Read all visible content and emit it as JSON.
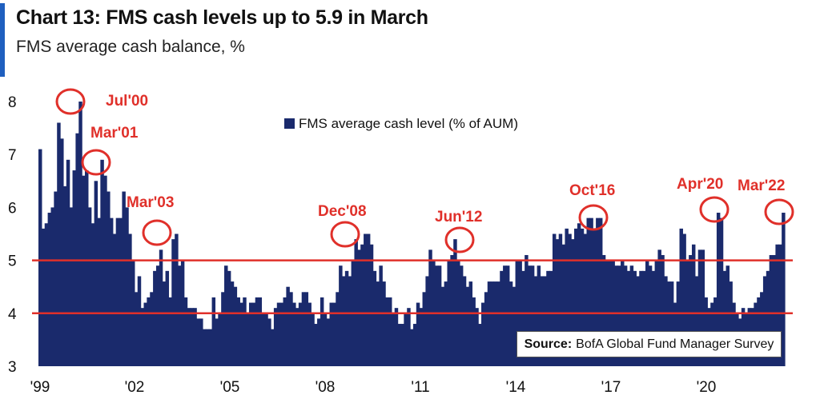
{
  "header": {
    "title": "Chart 13: FMS cash levels up to 5.9 in March",
    "subtitle": "FMS average cash balance, %"
  },
  "source": {
    "label": "Source:",
    "text": "BofA Global Fund Manager Survey"
  },
  "colors": {
    "bar": "#1a2a6c",
    "annotation": "#e0302a",
    "accent": "#1f5fbf"
  },
  "chart_data": {
    "type": "bar",
    "title": "Chart 13: FMS cash levels up to 5.9 in March",
    "subtitle": "FMS average cash balance, %",
    "ylim": [
      3,
      8.2
    ],
    "y_ticks": [
      "3",
      "4",
      "5",
      "6",
      "7",
      "8"
    ],
    "x_ticks": [
      "'99",
      "'02",
      "'05",
      "'08",
      "'11",
      "'14",
      "'17",
      "'20"
    ],
    "legend": {
      "label": "FMS average cash level (% of AUM)",
      "position": "top-center"
    },
    "reference_lines": [
      4,
      5
    ],
    "series": [
      {
        "name": "FMS average cash level (% of AUM)",
        "values": [
          7.1,
          5.6,
          5.7,
          5.9,
          6.0,
          6.3,
          7.6,
          7.3,
          6.4,
          6.9,
          6.0,
          6.7,
          7.4,
          8.0,
          6.6,
          6.7,
          6.0,
          5.7,
          6.5,
          5.8,
          6.9,
          6.6,
          6.3,
          5.8,
          5.5,
          5.8,
          5.8,
          6.3,
          6.0,
          5.5,
          5.0,
          4.4,
          4.7,
          4.1,
          4.2,
          4.3,
          4.4,
          4.8,
          4.9,
          5.2,
          4.6,
          4.8,
          4.3,
          5.4,
          5.5,
          4.9,
          5.0,
          4.3,
          4.1,
          4.1,
          4.1,
          3.9,
          3.9,
          3.7,
          3.7,
          3.7,
          4.3,
          3.9,
          4.0,
          4.4,
          4.9,
          4.8,
          4.6,
          4.5,
          4.3,
          4.2,
          4.3,
          4.0,
          4.2,
          4.2,
          4.3,
          4.3,
          4.0,
          4.0,
          3.9,
          3.7,
          4.1,
          4.2,
          4.2,
          4.3,
          4.5,
          4.4,
          4.2,
          4.1,
          4.2,
          4.4,
          4.4,
          4.2,
          4.0,
          3.8,
          3.9,
          4.3,
          4.0,
          3.9,
          4.2,
          4.2,
          4.4,
          4.9,
          4.7,
          4.8,
          4.7,
          5.0,
          5.4,
          5.2,
          5.3,
          5.5,
          5.5,
          5.3,
          4.8,
          4.6,
          4.9,
          4.6,
          4.3,
          4.3,
          4.0,
          4.1,
          3.8,
          3.8,
          4.0,
          4.1,
          3.7,
          3.8,
          4.2,
          4.1,
          4.4,
          4.7,
          5.2,
          5.0,
          4.9,
          4.9,
          4.5,
          4.6,
          5.0,
          5.1,
          5.4,
          5.0,
          4.9,
          4.7,
          4.5,
          4.6,
          4.3,
          4.1,
          3.8,
          4.2,
          4.4,
          4.6,
          4.6,
          4.6,
          4.6,
          4.8,
          4.9,
          4.9,
          4.6,
          4.5,
          5.0,
          5.0,
          4.8,
          5.1,
          4.9,
          4.9,
          4.7,
          4.9,
          4.7,
          4.7,
          4.8,
          4.8,
          5.5,
          5.4,
          5.5,
          5.3,
          5.6,
          5.5,
          5.4,
          5.6,
          5.7,
          5.6,
          5.5,
          5.8,
          5.8,
          5.6,
          5.8,
          5.8,
          5.1,
          5.0,
          5.0,
          5.0,
          4.9,
          4.9,
          5.0,
          4.9,
          4.8,
          4.9,
          4.8,
          4.7,
          4.8,
          4.8,
          5.0,
          4.9,
          4.8,
          5.0,
          5.2,
          5.1,
          4.7,
          4.6,
          4.6,
          4.2,
          4.6,
          5.6,
          5.5,
          5.0,
          5.1,
          5.3,
          4.7,
          5.2,
          5.2,
          4.3,
          4.1,
          4.2,
          4.3,
          5.9,
          5.8,
          4.8,
          4.9,
          4.6,
          4.2,
          4.0,
          3.9,
          4.1,
          4.0,
          4.1,
          4.1,
          4.2,
          4.3,
          4.4,
          4.7,
          4.8,
          5.1,
          5.1,
          5.3,
          5.3,
          5.9
        ]
      }
    ],
    "annotations": [
      {
        "label": "Jul'00",
        "value": 8.0
      },
      {
        "label": "Mar'01",
        "value": 6.9
      },
      {
        "label": "Mar'03",
        "value": 5.5
      },
      {
        "label": "Dec'08",
        "value": 5.5
      },
      {
        "label": "Jun'12",
        "value": 5.4
      },
      {
        "label": "Oct'16",
        "value": 5.8
      },
      {
        "label": "Apr'20",
        "value": 5.9
      },
      {
        "label": "Mar'22",
        "value": 5.9
      }
    ]
  }
}
